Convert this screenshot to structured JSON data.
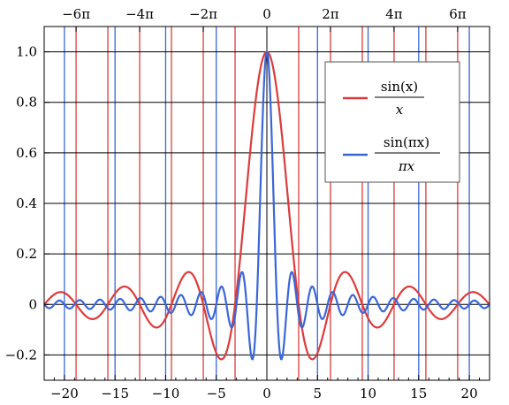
{
  "chart_data": {
    "type": "line",
    "title": "",
    "xlabel": "",
    "ylabel": "",
    "xlim": [
      -22,
      22
    ],
    "ylim": [
      -0.3,
      1.1
    ],
    "grid": "horizontal",
    "legend_position": "top-right",
    "x_ticks": [
      {
        "value": -20,
        "label": "−20"
      },
      {
        "value": -15,
        "label": "−15"
      },
      {
        "value": -10,
        "label": "−10"
      },
      {
        "value": -5,
        "label": "−5"
      },
      {
        "value": 0,
        "label": "0"
      },
      {
        "value": 5,
        "label": "5"
      },
      {
        "value": 10,
        "label": "10"
      },
      {
        "value": 15,
        "label": "15"
      },
      {
        "value": 20,
        "label": "20"
      }
    ],
    "top_ticks": [
      {
        "value": -18.85,
        "label": "−6π"
      },
      {
        "value": -12.566,
        "label": "−4π"
      },
      {
        "value": -6.283,
        "label": "−2π"
      },
      {
        "value": 0,
        "label": "0"
      },
      {
        "value": 6.283,
        "label": "2π"
      },
      {
        "value": 12.566,
        "label": "4π"
      },
      {
        "value": 18.85,
        "label": "6π"
      }
    ],
    "y_ticks": [
      {
        "value": -0.2,
        "label": "−0.2"
      },
      {
        "value": 0,
        "label": "0"
      },
      {
        "value": 0.2,
        "label": "0.2"
      },
      {
        "value": 0.4,
        "label": "0.4"
      },
      {
        "value": 0.6,
        "label": "0.6"
      },
      {
        "value": 0.8,
        "label": "0.8"
      },
      {
        "value": 1.0,
        "label": "1.0"
      }
    ],
    "zeros": {
      "red": [
        -18.85,
        -15.708,
        -12.566,
        -9.425,
        -6.283,
        -3.142,
        3.142,
        6.283,
        9.425,
        12.566,
        15.708,
        18.85
      ],
      "blue": [
        -20,
        -15,
        -10,
        -5,
        5,
        10,
        15,
        20
      ]
    },
    "series": [
      {
        "name_top": "sin(x)",
        "name_bottom": "x",
        "color": "#dd3b3b",
        "function": "sinc_unnormalized"
      },
      {
        "name_top": "sin(πx)",
        "name_bottom": "πx",
        "color": "#3a66d8",
        "function": "sinc_normalized"
      }
    ]
  }
}
